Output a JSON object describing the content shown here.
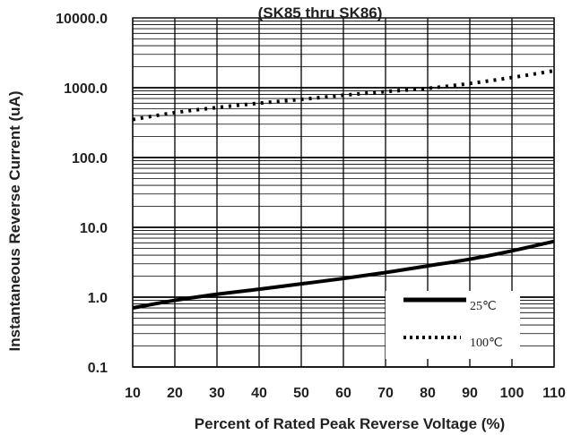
{
  "chart_data": {
    "type": "line",
    "title": "(SK85 thru SK86)",
    "xlabel": "Percent of  Rated Peak Reverse Voltage (%)",
    "ylabel": "Instantaneous Reverse Current (uA)",
    "xlim": [
      10,
      110
    ],
    "ylim": [
      0.1,
      10000
    ],
    "yscale": "log",
    "grid": true,
    "x_ticks": [
      10,
      20,
      30,
      40,
      50,
      60,
      70,
      80,
      90,
      100,
      110
    ],
    "x_tick_labels": [
      "10",
      "20",
      "30",
      "40",
      "50",
      "60",
      "70",
      "80",
      "90",
      "100",
      "110"
    ],
    "y_ticks": [
      0.1,
      1,
      10,
      100,
      1000,
      10000
    ],
    "y_tick_labels": [
      "0.1",
      "1.0",
      "10.0",
      "100.0",
      "1000.0",
      "10000.0"
    ],
    "legend_position": "bottom-right",
    "series": [
      {
        "name": "25℃",
        "style": "solid",
        "color": "#000000",
        "x": [
          10,
          20,
          30,
          40,
          50,
          60,
          70,
          80,
          90,
          100,
          110
        ],
        "y": [
          0.7,
          0.9,
          1.1,
          1.3,
          1.55,
          1.85,
          2.25,
          2.8,
          3.5,
          4.6,
          6.3
        ]
      },
      {
        "name": "100℃",
        "style": "dotted",
        "color": "#000000",
        "x": [
          10,
          20,
          30,
          40,
          50,
          60,
          70,
          80,
          90,
          100,
          110
        ],
        "y": [
          350,
          440,
          520,
          600,
          680,
          780,
          880,
          980,
          1150,
          1400,
          1750
        ]
      }
    ]
  }
}
